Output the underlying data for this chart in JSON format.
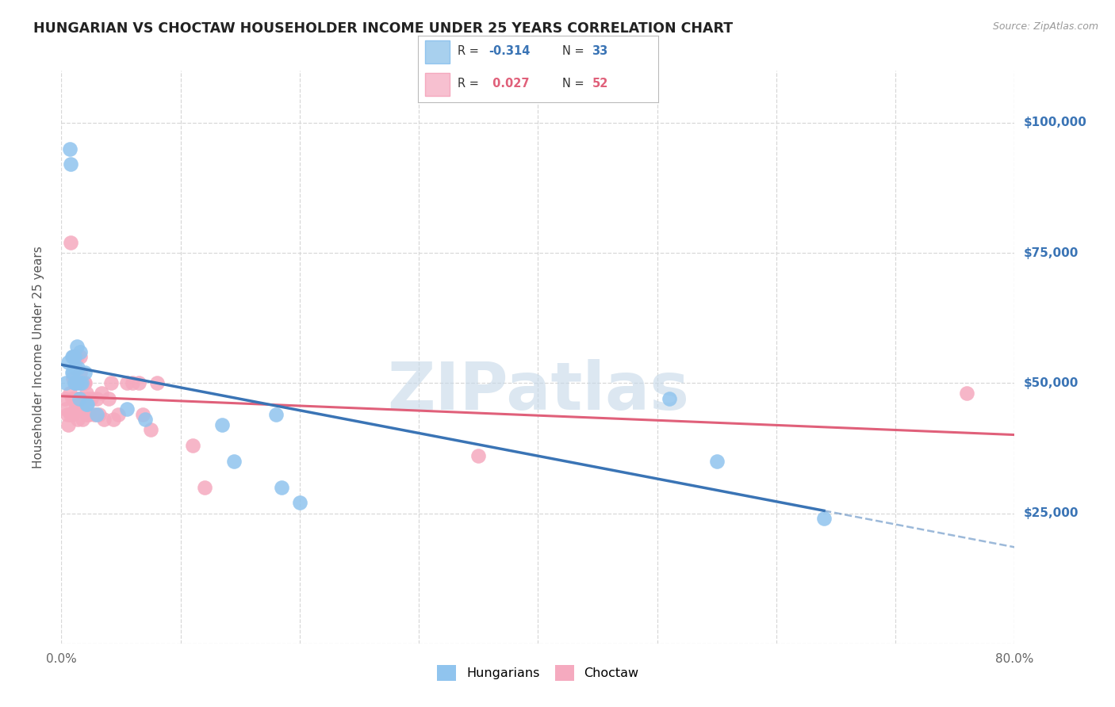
{
  "title": "HUNGARIAN VS CHOCTAW HOUSEHOLDER INCOME UNDER 25 YEARS CORRELATION CHART",
  "source": "Source: ZipAtlas.com",
  "ylabel": "Householder Income Under 25 years",
  "xlim": [
    0.0,
    0.8
  ],
  "ylim": [
    0,
    110000
  ],
  "yticks": [
    0,
    25000,
    50000,
    75000,
    100000
  ],
  "ytick_labels": [
    "",
    "$25,000",
    "$50,000",
    "$75,000",
    "$100,000"
  ],
  "xtick_positions": [
    0.0,
    0.1,
    0.2,
    0.3,
    0.4,
    0.5,
    0.6,
    0.7,
    0.8
  ],
  "xtick_labels": [
    "0.0%",
    "",
    "",
    "",
    "",
    "",
    "",
    "",
    "80.0%"
  ],
  "legend_blue_R": "-0.314",
  "legend_blue_N": "33",
  "legend_pink_R": "0.027",
  "legend_pink_N": "52",
  "blue_scatter_color": "#90C4EE",
  "pink_scatter_color": "#F5AABF",
  "blue_line_color": "#3A74B5",
  "pink_line_color": "#E0607A",
  "blue_legend_color": "#A8D0EE",
  "pink_legend_color": "#F7C0D0",
  "hungarian_x": [
    0.004,
    0.006,
    0.007,
    0.008,
    0.009,
    0.009,
    0.01,
    0.01,
    0.011,
    0.011,
    0.012,
    0.012,
    0.013,
    0.013,
    0.014,
    0.015,
    0.016,
    0.016,
    0.017,
    0.02,
    0.021,
    0.022,
    0.03,
    0.055,
    0.07,
    0.135,
    0.145,
    0.18,
    0.185,
    0.2,
    0.51,
    0.55,
    0.64
  ],
  "hungarian_y": [
    50000,
    54000,
    95000,
    92000,
    55000,
    52000,
    55000,
    52000,
    55000,
    50000,
    53000,
    50000,
    57000,
    50000,
    53000,
    47000,
    56000,
    50000,
    50000,
    52000,
    46000,
    46000,
    44000,
    45000,
    43000,
    42000,
    35000,
    44000,
    30000,
    27000,
    47000,
    35000,
    24000
  ],
  "choctaw_x": [
    0.003,
    0.004,
    0.005,
    0.006,
    0.007,
    0.008,
    0.008,
    0.009,
    0.009,
    0.01,
    0.01,
    0.011,
    0.011,
    0.012,
    0.012,
    0.013,
    0.013,
    0.014,
    0.014,
    0.015,
    0.015,
    0.016,
    0.016,
    0.017,
    0.018,
    0.018,
    0.019,
    0.02,
    0.021,
    0.021,
    0.022,
    0.023,
    0.025,
    0.028,
    0.03,
    0.032,
    0.034,
    0.036,
    0.04,
    0.042,
    0.044,
    0.048,
    0.055,
    0.06,
    0.065,
    0.068,
    0.075,
    0.08,
    0.11,
    0.12,
    0.35,
    0.76
  ],
  "choctaw_y": [
    47000,
    45000,
    44000,
    42000,
    48000,
    77000,
    44000,
    47000,
    44000,
    55000,
    51000,
    55000,
    47000,
    50000,
    45000,
    55000,
    45000,
    47000,
    43000,
    50000,
    45000,
    55000,
    52000,
    46000,
    47000,
    43000,
    50000,
    50000,
    48000,
    44000,
    47000,
    44000,
    47000,
    44000,
    47000,
    44000,
    48000,
    43000,
    47000,
    50000,
    43000,
    44000,
    50000,
    50000,
    50000,
    44000,
    41000,
    50000,
    38000,
    30000,
    36000,
    48000
  ],
  "background_color": "#FFFFFF",
  "grid_color": "#D8D8D8",
  "watermark_color": "#C5D8E8"
}
